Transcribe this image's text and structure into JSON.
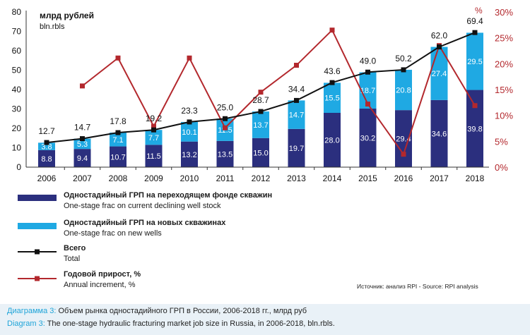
{
  "chart_data": {
    "type": "bar",
    "ylabel_ru": "млрд рублей",
    "ylabel_en": "bln.rbls",
    "y2label": "%",
    "ylim": [
      0,
      80
    ],
    "y2lim": [
      0,
      30
    ],
    "yticks": [
      "0",
      "10",
      "20",
      "30",
      "40",
      "50",
      "60",
      "70",
      "80"
    ],
    "y2ticks": [
      "0%",
      "5%",
      "10%",
      "15%",
      "20%",
      "25%",
      "30%"
    ],
    "categories": [
      "2006",
      "2007",
      "2008",
      "2009",
      "2010",
      "2011",
      "2012",
      "2013",
      "2014",
      "2015",
      "2016",
      "2017",
      "2018"
    ],
    "series": [
      {
        "name": "Одностадийный ГРП на переходящем фонде скважин / One-stage frac on current declining well stock",
        "values": [
          8.8,
          9.4,
          10.7,
          11.5,
          13.2,
          13.5,
          15.0,
          19.7,
          28.0,
          30.2,
          29.4,
          34.6,
          39.8
        ],
        "labels": [
          "8.8",
          "9.4",
          "10.7",
          "11.5",
          "13.2",
          "13.5",
          "15.0",
          "19.7",
          "28.0",
          "30.2",
          "29.4",
          "34.6",
          "39.8"
        ]
      },
      {
        "name": "Одностадийный ГРП на новых скважинах / One-stage frac on new wells",
        "values": [
          3.8,
          5.3,
          7.1,
          7.7,
          10.1,
          11.5,
          13.7,
          14.7,
          15.5,
          18.7,
          20.8,
          27.4,
          29.5
        ],
        "labels": [
          "3.8",
          "5.3",
          "7.1",
          "7.7",
          "10.1",
          "11.5",
          "13.7",
          "14.7",
          "15.5",
          "18.7",
          "20.8",
          "27.4",
          "29.5"
        ]
      },
      {
        "name": "Всего / Total",
        "values": [
          12.7,
          14.7,
          17.8,
          19.2,
          23.3,
          25.0,
          28.7,
          34.4,
          43.6,
          49.0,
          50.2,
          62.0,
          69.4
        ],
        "labels": [
          "12.7",
          "14.7",
          "17.8",
          "19.2",
          "23.3",
          "25.0",
          "28.7",
          "34.4",
          "43.6",
          "49.0",
          "50.2",
          "62.0",
          "69.4"
        ]
      },
      {
        "name": "Годовой прирост, % / Annual increment, %",
        "axis": "right",
        "values": [
          null,
          15.7,
          21.1,
          7.9,
          21.1,
          7.6,
          14.5,
          19.7,
          26.5,
          12.2,
          2.5,
          23.5,
          11.9
        ]
      }
    ],
    "colors": {
      "stock": "#2b2f7e",
      "new": "#1fa9e3",
      "total": "#111111",
      "increment": "#b3282d"
    }
  },
  "legend": [
    {
      "ru": "Одностадийный ГРП на переходящем фонде скважин",
      "en": "One-stage frac on current declining well stock"
    },
    {
      "ru": "Одностадийный ГРП на новых скважинах",
      "en": "One-stage frac on new wells"
    },
    {
      "ru": "Всего",
      "en": "Total"
    },
    {
      "ru": "Годовой прирост, %",
      "en": "Annual increment, %"
    }
  ],
  "source": "Источник: анализ RPI - Source: RPI analysis",
  "caption": {
    "ru_label": "Диаграмма 3:",
    "ru_text": " Объем рынка одностадийного ГРП в России, 2006-2018 гг., млрд руб",
    "en_label": "Diagram 3:",
    "en_text": " The one-stage hydraulic fracturing market job size in Russia, in 2006-2018, bln.rbls."
  }
}
